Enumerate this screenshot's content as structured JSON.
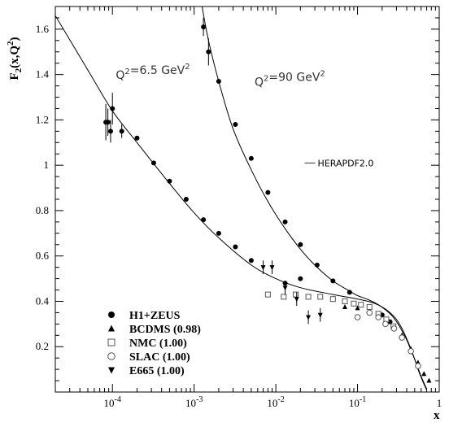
{
  "chart_data": {
    "type": "scatter",
    "title": "",
    "xlabel": "x",
    "ylabel": "F₂(x,Q²)",
    "x_scale": "log",
    "xlim": [
      2e-05,
      1.0
    ],
    "ylim": [
      0.0,
      1.7
    ],
    "x_ticks": [
      {
        "base": "10",
        "exp": "-4"
      },
      {
        "base": "10",
        "exp": "-3"
      },
      {
        "base": "10",
        "exp": "-2"
      },
      {
        "base": "10",
        "exp": "-1"
      },
      {
        "base": "1",
        "exp": ""
      }
    ],
    "x_tick_values": [
      0.0001,
      0.001,
      0.01,
      0.1,
      1
    ],
    "y_ticks": [
      "0.2",
      "0.4",
      "0.6",
      "0.8",
      "1",
      "1.2",
      "1.4",
      "1.6"
    ],
    "y_tick_values": [
      0.2,
      0.4,
      0.6,
      0.8,
      1.0,
      1.2,
      1.4,
      1.6
    ],
    "annotations": [
      {
        "text": "Q²=6.5 GeV²",
        "x": 0.00011,
        "y": 1.38
      },
      {
        "text": "Q²=90 GeV²",
        "x": 0.0055,
        "y": 1.35
      }
    ],
    "curve_legend": {
      "label": "HERAPDF2.0",
      "x": 0.1,
      "y": 1.01
    },
    "curves": [
      {
        "name": "HERAPDF2.0 Q²=6.5 GeV²",
        "x": [
          2e-05,
          5e-05,
          0.0001,
          0.0002,
          0.0005,
          0.001,
          0.002,
          0.005,
          0.01,
          0.02,
          0.05,
          0.1,
          0.15,
          0.2,
          0.25,
          0.3,
          0.35,
          0.4,
          0.45,
          0.5,
          0.55,
          0.6,
          0.65,
          0.7
        ],
        "y": [
          1.66,
          1.42,
          1.24,
          1.1,
          0.92,
          0.79,
          0.68,
          0.56,
          0.5,
          0.46,
          0.43,
          0.41,
          0.395,
          0.375,
          0.35,
          0.32,
          0.28,
          0.235,
          0.19,
          0.145,
          0.1,
          0.065,
          0.035,
          0.01
        ]
      },
      {
        "name": "HERAPDF2.0 Q²=90 GeV²",
        "x": [
          0.00125,
          0.0015,
          0.002,
          0.003,
          0.005,
          0.008,
          0.013,
          0.02,
          0.03,
          0.05,
          0.08,
          0.1,
          0.13,
          0.18,
          0.25,
          0.3,
          0.35,
          0.4,
          0.45,
          0.5,
          0.55,
          0.6,
          0.65,
          0.7
        ],
        "y": [
          1.7,
          1.55,
          1.37,
          1.16,
          0.98,
          0.84,
          0.72,
          0.63,
          0.56,
          0.49,
          0.445,
          0.425,
          0.41,
          0.385,
          0.345,
          0.31,
          0.27,
          0.23,
          0.185,
          0.145,
          0.105,
          0.07,
          0.04,
          0.015
        ]
      }
    ],
    "series": [
      {
        "name": "H1+ZEUS",
        "marker": "filled-circle",
        "points": [
          {
            "x": 8.3e-05,
            "y": 1.19,
            "err": 0.08
          },
          {
            "x": 8.8e-05,
            "y": 1.19,
            "err": 0.06
          },
          {
            "x": 9.5e-05,
            "y": 1.15,
            "err": 0.05
          },
          {
            "x": 0.0001,
            "y": 1.25,
            "err": 0.07
          },
          {
            "x": 0.00013,
            "y": 1.15,
            "err": 0.03
          },
          {
            "x": 0.0002,
            "y": 1.12
          },
          {
            "x": 0.00032,
            "y": 1.01
          },
          {
            "x": 0.0005,
            "y": 0.93
          },
          {
            "x": 0.0008,
            "y": 0.85
          },
          {
            "x": 0.0013,
            "y": 0.76
          },
          {
            "x": 0.002,
            "y": 0.7
          },
          {
            "x": 0.0032,
            "y": 0.64
          },
          {
            "x": 0.005,
            "y": 0.58
          },
          {
            "x": 0.013,
            "y": 0.48
          },
          {
            "x": 0.02,
            "y": 0.5
          },
          {
            "x": 0.05,
            "y": 0.49
          },
          {
            "x": 0.08,
            "y": 0.44
          },
          {
            "x": 0.0013,
            "y": 1.61,
            "err": 0.04
          },
          {
            "x": 0.0015,
            "y": 1.5,
            "err": 0.06
          },
          {
            "x": 0.002,
            "y": 1.37
          },
          {
            "x": 0.0032,
            "y": 1.18
          },
          {
            "x": 0.005,
            "y": 1.03
          },
          {
            "x": 0.008,
            "y": 0.88
          },
          {
            "x": 0.013,
            "y": 0.75
          },
          {
            "x": 0.02,
            "y": 0.65
          },
          {
            "x": 0.032,
            "y": 0.56
          },
          {
            "x": 0.2,
            "y": 0.34
          },
          {
            "x": 0.25,
            "y": 0.31
          }
        ]
      },
      {
        "name": "BCDMS (0.98)",
        "marker": "filled-triangle-up",
        "points": [
          {
            "x": 0.07,
            "y": 0.375
          },
          {
            "x": 0.1,
            "y": 0.37
          },
          {
            "x": 0.14,
            "y": 0.355
          },
          {
            "x": 0.18,
            "y": 0.34
          },
          {
            "x": 0.225,
            "y": 0.32
          },
          {
            "x": 0.275,
            "y": 0.29
          },
          {
            "x": 0.35,
            "y": 0.25
          },
          {
            "x": 0.45,
            "y": 0.19
          },
          {
            "x": 0.55,
            "y": 0.13
          },
          {
            "x": 0.65,
            "y": 0.08
          },
          {
            "x": 0.75,
            "y": 0.05
          }
        ]
      },
      {
        "name": "NMC (1.00)",
        "marker": "open-square",
        "points": [
          {
            "x": 0.008,
            "y": 0.43
          },
          {
            "x": 0.0125,
            "y": 0.42
          },
          {
            "x": 0.0175,
            "y": 0.43
          },
          {
            "x": 0.025,
            "y": 0.42
          },
          {
            "x": 0.035,
            "y": 0.42
          },
          {
            "x": 0.05,
            "y": 0.41
          },
          {
            "x": 0.07,
            "y": 0.4
          },
          {
            "x": 0.09,
            "y": 0.39
          },
          {
            "x": 0.11,
            "y": 0.385
          },
          {
            "x": 0.14,
            "y": 0.375
          },
          {
            "x": 0.18,
            "y": 0.345
          },
          {
            "x": 0.225,
            "y": 0.32
          },
          {
            "x": 0.275,
            "y": 0.29
          }
        ]
      },
      {
        "name": "SLAC (1.00)",
        "marker": "open-circle",
        "points": [
          {
            "x": 0.1,
            "y": 0.33
          },
          {
            "x": 0.14,
            "y": 0.35
          },
          {
            "x": 0.18,
            "y": 0.33
          },
          {
            "x": 0.22,
            "y": 0.3
          },
          {
            "x": 0.28,
            "y": 0.28
          },
          {
            "x": 0.35,
            "y": 0.24
          },
          {
            "x": 0.45,
            "y": 0.18
          },
          {
            "x": 0.55,
            "y": 0.115
          }
        ]
      },
      {
        "name": "E665 (1.00)",
        "marker": "filled-triangle-down",
        "points": [
          {
            "x": 0.007,
            "y": 0.55,
            "err": 0.03
          },
          {
            "x": 0.009,
            "y": 0.55,
            "err": 0.03
          },
          {
            "x": 0.013,
            "y": 0.46,
            "err": 0.03
          },
          {
            "x": 0.018,
            "y": 0.41,
            "err": 0.03
          },
          {
            "x": 0.025,
            "y": 0.33,
            "err": 0.03
          },
          {
            "x": 0.035,
            "y": 0.34,
            "err": 0.03
          }
        ]
      }
    ],
    "legend": {
      "placement": "bottom-left"
    }
  }
}
